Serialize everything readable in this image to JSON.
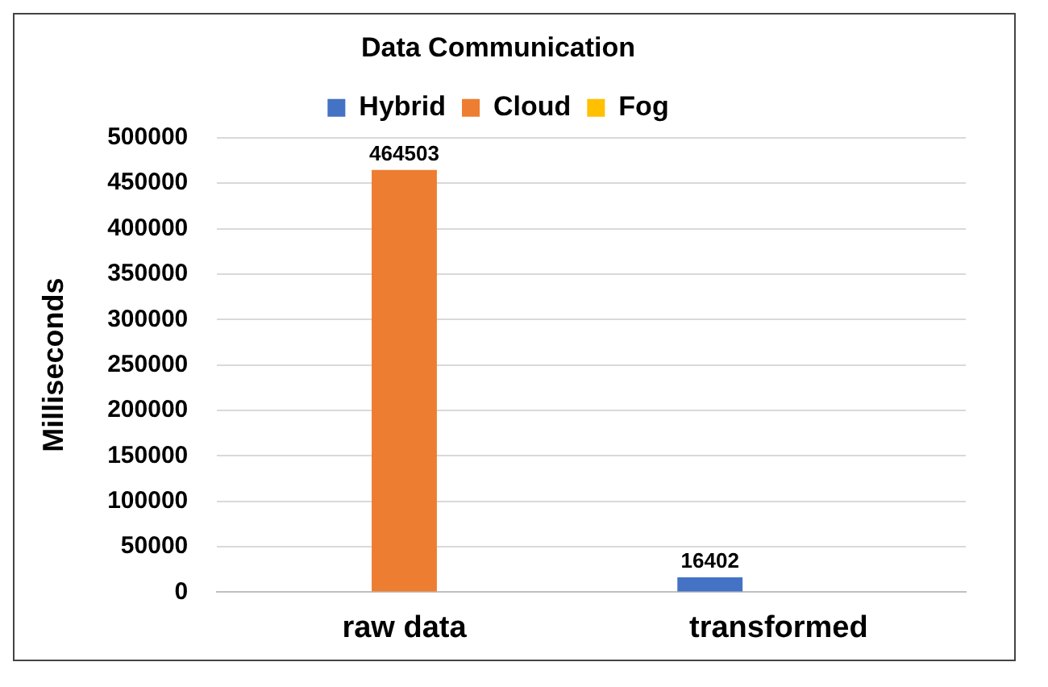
{
  "chart_data": {
    "type": "bar",
    "title": "Data Communication",
    "ylabel": "Milliseconds",
    "categories": [
      "raw data",
      "transformed"
    ],
    "series": [
      {
        "name": "Hybrid",
        "color": "#4472c4",
        "values": [
          null,
          16402
        ],
        "value_labels": [
          null,
          "16402"
        ]
      },
      {
        "name": "Cloud",
        "color": "#ed7d31",
        "values": [
          464503,
          null
        ],
        "value_labels": [
          "464503",
          null
        ]
      },
      {
        "name": "Fog",
        "color": "#ffc000",
        "values": [
          null,
          null
        ],
        "value_labels": [
          null,
          null
        ]
      }
    ],
    "ylim": [
      0,
      500000
    ],
    "yticks": [
      0,
      50000,
      100000,
      150000,
      200000,
      250000,
      300000,
      350000,
      400000,
      450000,
      500000
    ],
    "grid": "y",
    "legend": "top"
  }
}
